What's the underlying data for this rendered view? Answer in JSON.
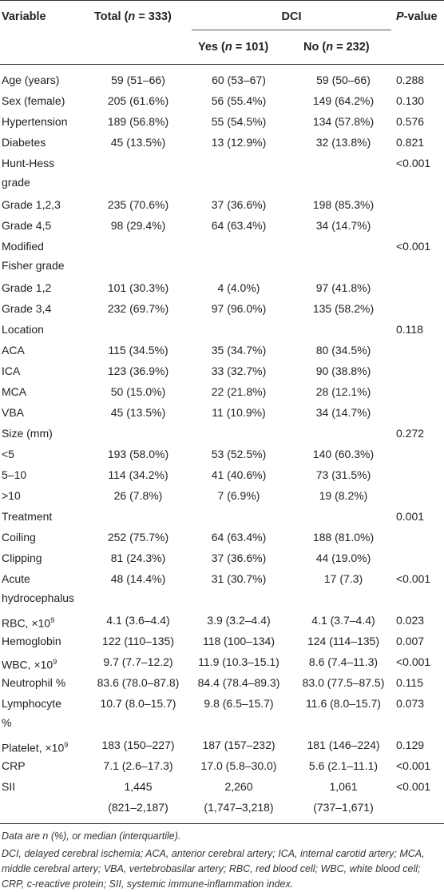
{
  "headers": {
    "variable": "Variable",
    "total": "Total (n = 333)",
    "dci": "DCI",
    "yes": "Yes (n = 101)",
    "no": "No (n = 232)",
    "pvalue": "P-value"
  },
  "rows": [
    {
      "v": [
        "Age (years)"
      ],
      "t": [
        "59 (51–66)"
      ],
      "y": [
        "60 (53–67)"
      ],
      "n": [
        "59 (50–66)"
      ],
      "p": [
        "0.288"
      ]
    },
    {
      "v": [
        "Sex (female)"
      ],
      "t": [
        "205 (61.6%)"
      ],
      "y": [
        "56 (55.4%)"
      ],
      "n": [
        "149 (64.2%)"
      ],
      "p": [
        "0.130"
      ]
    },
    {
      "v": [
        "Hypertension"
      ],
      "t": [
        "189 (56.8%)"
      ],
      "y": [
        "55 (54.5%)"
      ],
      "n": [
        "134 (57.8%)"
      ],
      "p": [
        "0.576"
      ]
    },
    {
      "v": [
        "Diabetes"
      ],
      "t": [
        "45 (13.5%)"
      ],
      "y": [
        "13 (12.9%)"
      ],
      "n": [
        "32 (13.8%)"
      ],
      "p": [
        "0.821"
      ]
    },
    {
      "v": [
        "Hunt-Hess",
        "grade"
      ],
      "t": [
        ""
      ],
      "y": [
        ""
      ],
      "n": [
        ""
      ],
      "p": [
        "<0.001"
      ]
    },
    {
      "v": [
        "Grade 1,2,3"
      ],
      "t": [
        "235 (70.6%)"
      ],
      "y": [
        "37 (36.6%)"
      ],
      "n": [
        "198 (85.3%)"
      ],
      "p": [
        ""
      ]
    },
    {
      "v": [
        "Grade 4,5"
      ],
      "t": [
        "98 (29.4%)"
      ],
      "y": [
        "64 (63.4%)"
      ],
      "n": [
        "34 (14.7%)"
      ],
      "p": [
        ""
      ]
    },
    {
      "v": [
        "Modified",
        "Fisher grade"
      ],
      "t": [
        ""
      ],
      "y": [
        ""
      ],
      "n": [
        ""
      ],
      "p": [
        "<0.001"
      ]
    },
    {
      "v": [
        "Grade 1,2"
      ],
      "t": [
        "101 (30.3%)"
      ],
      "y": [
        "4 (4.0%)"
      ],
      "n": [
        "97 (41.8%)"
      ],
      "p": [
        ""
      ]
    },
    {
      "v": [
        "Grade 3,4"
      ],
      "t": [
        "232 (69.7%)"
      ],
      "y": [
        "97 (96.0%)"
      ],
      "n": [
        "135 (58.2%)"
      ],
      "p": [
        ""
      ]
    },
    {
      "v": [
        "Location"
      ],
      "t": [
        ""
      ],
      "y": [
        ""
      ],
      "n": [
        ""
      ],
      "p": [
        "0.118"
      ]
    },
    {
      "v": [
        "ACA"
      ],
      "t": [
        "115 (34.5%)"
      ],
      "y": [
        "35 (34.7%)"
      ],
      "n": [
        "80 (34.5%)"
      ],
      "p": [
        ""
      ]
    },
    {
      "v": [
        "ICA"
      ],
      "t": [
        "123 (36.9%)"
      ],
      "y": [
        "33 (32.7%)"
      ],
      "n": [
        "90 (38.8%)"
      ],
      "p": [
        ""
      ]
    },
    {
      "v": [
        "MCA"
      ],
      "t": [
        "50 (15.0%)"
      ],
      "y": [
        "22 (21.8%)"
      ],
      "n": [
        "28 (12.1%)"
      ],
      "p": [
        ""
      ]
    },
    {
      "v": [
        "VBA"
      ],
      "t": [
        "45 (13.5%)"
      ],
      "y": [
        "11 (10.9%)"
      ],
      "n": [
        "34 (14.7%)"
      ],
      "p": [
        ""
      ]
    },
    {
      "v": [
        "Size (mm)"
      ],
      "t": [
        ""
      ],
      "y": [
        ""
      ],
      "n": [
        ""
      ],
      "p": [
        "0.272"
      ]
    },
    {
      "v": [
        "<5"
      ],
      "t": [
        "193 (58.0%)"
      ],
      "y": [
        "53 (52.5%)"
      ],
      "n": [
        "140 (60.3%)"
      ],
      "p": [
        ""
      ]
    },
    {
      "v": [
        "5–10"
      ],
      "t": [
        "114 (34.2%)"
      ],
      "y": [
        "41 (40.6%)"
      ],
      "n": [
        "73 (31.5%)"
      ],
      "p": [
        ""
      ]
    },
    {
      "v": [
        ">10"
      ],
      "t": [
        "26 (7.8%)"
      ],
      "y": [
        "7 (6.9%)"
      ],
      "n": [
        "19 (8.2%)"
      ],
      "p": [
        ""
      ]
    },
    {
      "v": [
        "Treatment"
      ],
      "t": [
        ""
      ],
      "y": [
        ""
      ],
      "n": [
        ""
      ],
      "p": [
        "0.001"
      ]
    },
    {
      "v": [
        "Coiling"
      ],
      "t": [
        "252 (75.7%)"
      ],
      "y": [
        "64 (63.4%)"
      ],
      "n": [
        "188 (81.0%)"
      ],
      "p": [
        ""
      ]
    },
    {
      "v": [
        "Clipping"
      ],
      "t": [
        "81 (24.3%)"
      ],
      "y": [
        "37 (36.6%)"
      ],
      "n": [
        "44 (19.0%)"
      ],
      "p": [
        ""
      ]
    },
    {
      "v": [
        "Acute",
        "hydrocephalus"
      ],
      "t": [
        "48 (14.4%)"
      ],
      "y": [
        "31 (30.7%)"
      ],
      "n": [
        "17 (7.3)"
      ],
      "p": [
        "<0.001"
      ]
    },
    {
      "v": [
        "RBC, ×10",
        "9"
      ],
      "t": [
        "4.1 (3.6–4.4)"
      ],
      "y": [
        "3.9 (3.2–4.4)"
      ],
      "n": [
        "4.1 (3.7–4.4)"
      ],
      "p": [
        "0.023"
      ],
      "sup": true
    },
    {
      "v": [
        "Hemoglobin"
      ],
      "t": [
        "122 (110–135)"
      ],
      "y": [
        "118 (100–134)"
      ],
      "n": [
        "124 (114–135)"
      ],
      "p": [
        "0.007"
      ]
    },
    {
      "v": [
        "WBC, ×10",
        "9"
      ],
      "t": [
        "9.7 (7.7–12.2)"
      ],
      "y": [
        "11.9 (10.3–15.1)"
      ],
      "n": [
        "8.6 (7.4–11.3)"
      ],
      "p": [
        "<0.001"
      ],
      "sup": true
    },
    {
      "v": [
        "Neutrophil %"
      ],
      "t": [
        "83.6 (78.0–87.8)"
      ],
      "y": [
        "84.4 (78.4–89.3)"
      ],
      "n": [
        "83.0 (77.5–87.5)"
      ],
      "p": [
        "0.115"
      ]
    },
    {
      "v": [
        "Lymphocyte",
        "%"
      ],
      "t": [
        "10.7 (8.0–15.7)"
      ],
      "y": [
        "9.8 (6.5–15.7)"
      ],
      "n": [
        "11.6 (8.0–15.7)"
      ],
      "p": [
        "0.073"
      ]
    },
    {
      "v": [
        "Platelet, ×10",
        "9"
      ],
      "t": [
        "183 (150–227)"
      ],
      "y": [
        "187 (157–232)"
      ],
      "n": [
        "181 (146–224)"
      ],
      "p": [
        "0.129"
      ],
      "sup": true
    },
    {
      "v": [
        "CRP"
      ],
      "t": [
        "7.1 (2.6–17.3)"
      ],
      "y": [
        "17.0 (5.8–30.0)"
      ],
      "n": [
        "5.6 (2.1–11.1)"
      ],
      "p": [
        "<0.001"
      ]
    },
    {
      "v": [
        "SII"
      ],
      "t": [
        "1,445",
        "(821–2,187)"
      ],
      "y": [
        "2,260",
        "(1,747–3,218)"
      ],
      "n": [
        "1,061",
        "(737–1,671)"
      ],
      "p": [
        "<0.001"
      ]
    }
  ],
  "footnotes": {
    "line1": "Data are n (%), or median (interquartile).",
    "line2": "DCI, delayed cerebral ischemia; ACA, anterior cerebral artery; ICA, internal carotid artery; MCA, middle cerebral artery; VBA, vertebrobasilar artery; RBC, red blood cell; WBC, white blood cell; CRP, c-reactive protein; SII, systemic immune-inflammation index."
  }
}
